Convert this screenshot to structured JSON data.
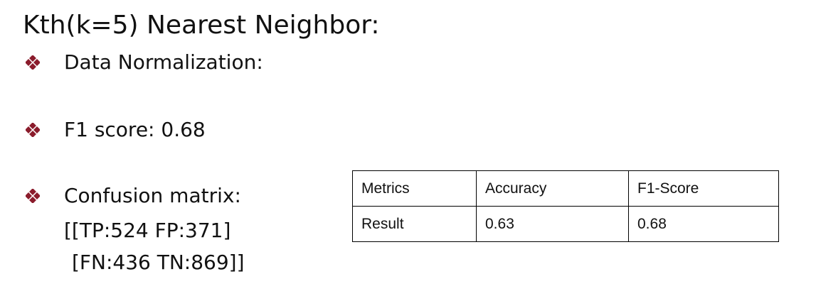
{
  "title": "Kth(k=5) Nearest Neighbor:",
  "accent_color": "#8b1c2c",
  "bullet_icon": "diamond-four-dots-icon",
  "bullets": {
    "normalization": "Data Normalization:",
    "f1": "F1 score: 0.68",
    "confusion": "Confusion matrix:"
  },
  "confusion_matrix": {
    "line1": "[[TP:524 FP:371]",
    "line2": "[FN:436 TN:869]]"
  },
  "table": {
    "header": [
      "Metrics",
      "Accuracy",
      "F1-Score"
    ],
    "row": [
      "Result",
      "0.63",
      "0.68"
    ]
  }
}
